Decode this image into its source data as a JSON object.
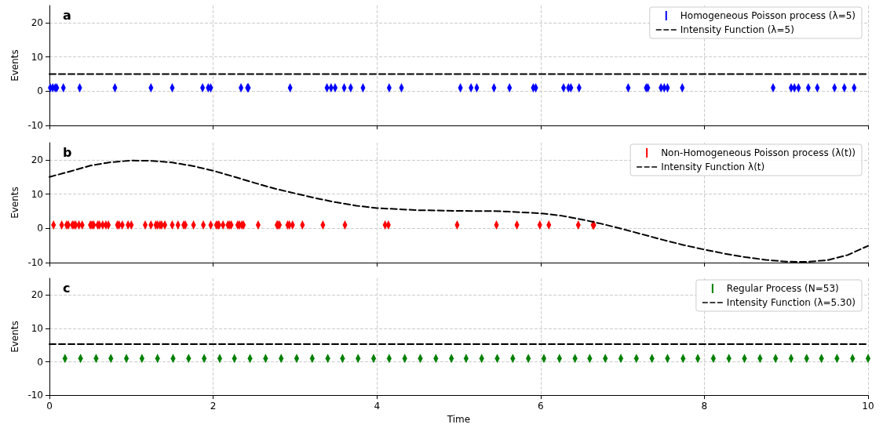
{
  "chart_data": [
    {
      "type": "scatter",
      "annotations": [
        "a"
      ],
      "ylabel": "Events",
      "xlim": [
        0,
        10
      ],
      "xticks": [
        0,
        2,
        4,
        6,
        8,
        10
      ],
      "ylim": [
        -10,
        25
      ],
      "yticks": [
        -10,
        0,
        10,
        20
      ],
      "grid": true,
      "legend": "top right",
      "tick_labels": "y",
      "x": [
        0.01,
        0.04,
        0.07,
        0.09,
        0.17,
        0.37,
        0.8,
        1.24,
        1.5,
        1.87,
        1.94,
        1.97,
        2.34,
        2.42,
        2.43,
        2.94,
        3.39,
        3.44,
        3.49,
        3.6,
        3.68,
        3.83,
        4.15,
        4.3,
        5.02,
        5.15,
        5.22,
        5.43,
        5.62,
        5.91,
        5.94,
        6.28,
        6.34,
        6.37,
        6.47,
        7.07,
        7.29,
        7.31,
        7.47,
        7.51,
        7.55,
        7.73,
        8.84,
        9.06,
        9.1,
        9.15,
        9.27,
        9.38,
        9.59,
        9.71,
        9.83
      ],
      "series": [
        {
          "name": "Homogeneous Poisson process (λ=5)",
          "marker": "diamond",
          "color": "#0000ff",
          "values": [
            1,
            1,
            1,
            1,
            1,
            1,
            1,
            1,
            1,
            1,
            1,
            1,
            1,
            1,
            1,
            1,
            1,
            1,
            1,
            1,
            1,
            1,
            1,
            1,
            1,
            1,
            1,
            1,
            1,
            1,
            1,
            1,
            1,
            1,
            1,
            1,
            1,
            1,
            1,
            1,
            1,
            1,
            1,
            1,
            1,
            1,
            1,
            1,
            1,
            1,
            1
          ]
        },
        {
          "name": "Intensity Function (λ=5)",
          "type": "line",
          "marker": "none",
          "line_style": "dashed",
          "color": "#000000",
          "x": [
            0,
            10
          ],
          "values": [
            5,
            5
          ]
        }
      ]
    },
    {
      "type": "scatter",
      "annotations": [
        "b"
      ],
      "ylabel": "Events",
      "xlim": [
        0,
        10
      ],
      "xticks": [
        0,
        2,
        4,
        6,
        8,
        10
      ],
      "ylim": [
        -10,
        25
      ],
      "yticks": [
        -10,
        0,
        10,
        20
      ],
      "grid": true,
      "legend": "top right",
      "tick_labels": "y",
      "x": [
        0.05,
        0.15,
        0.21,
        0.23,
        0.28,
        0.3,
        0.32,
        0.36,
        0.4,
        0.5,
        0.52,
        0.54,
        0.59,
        0.61,
        0.65,
        0.69,
        0.72,
        0.83,
        0.85,
        0.89,
        0.96,
        1.0,
        1.17,
        1.24,
        1.3,
        1.32,
        1.35,
        1.37,
        1.41,
        1.5,
        1.57,
        1.64,
        1.66,
        1.76,
        1.88,
        1.97,
        2.04,
        2.06,
        2.07,
        2.12,
        2.18,
        2.2,
        2.22,
        2.3,
        2.32,
        2.35,
        2.37,
        2.55,
        2.78,
        2.79,
        2.81,
        2.91,
        2.93,
        2.97,
        3.09,
        3.34,
        3.61,
        4.1,
        4.14,
        4.98,
        5.46,
        5.71,
        5.99,
        6.1,
        6.46,
        6.64,
        6.65
      ],
      "series": [
        {
          "name": "Non-Homogeneous Poisson process (λ(t))",
          "marker": "diamond",
          "color": "#ff0000",
          "values": [
            1,
            1,
            1,
            1,
            1,
            1,
            1,
            1,
            1,
            1,
            1,
            1,
            1,
            1,
            1,
            1,
            1,
            1,
            1,
            1,
            1,
            1,
            1,
            1,
            1,
            1,
            1,
            1,
            1,
            1,
            1,
            1,
            1,
            1,
            1,
            1,
            1,
            1,
            1,
            1,
            1,
            1,
            1,
            1,
            1,
            1,
            1,
            1,
            1,
            1,
            1,
            1,
            1,
            1,
            1,
            1,
            1,
            1,
            1,
            1,
            1,
            1,
            1,
            1,
            1,
            1,
            1
          ]
        },
        {
          "name": "Intensity Function λ(t)",
          "type": "line",
          "marker": "none",
          "line_style": "dashed",
          "color": "#000000",
          "x": [
            0,
            0.25,
            0.5,
            0.75,
            1,
            1.25,
            1.5,
            1.75,
            2,
            2.25,
            2.5,
            2.75,
            3,
            3.25,
            3.5,
            3.75,
            4,
            4.5,
            5,
            5.5,
            6,
            6.25,
            6.5,
            6.75,
            7,
            7.25,
            7.5,
            7.75,
            8,
            8.25,
            8.5,
            8.75,
            9,
            9.25,
            9.5,
            9.75,
            10
          ],
          "values": [
            15,
            16.6,
            18.3,
            19.3,
            19.8,
            19.7,
            19.2,
            18.2,
            16.8,
            15.1,
            13.3,
            11.6,
            10.2,
            8.8,
            7.6,
            6.6,
            5.9,
            5.3,
            5.1,
            5.0,
            4.4,
            3.7,
            2.6,
            1.3,
            -0.2,
            -1.8,
            -3.4,
            -4.9,
            -6.2,
            -7.4,
            -8.4,
            -9.2,
            -9.7,
            -9.8,
            -9.3,
            -7.8,
            -5.1
          ]
        }
      ]
    },
    {
      "type": "scatter",
      "annotations": [
        "c"
      ],
      "xlabel": "Time",
      "ylabel": "Events",
      "xlim": [
        0,
        10
      ],
      "xticks": [
        0,
        2,
        4,
        6,
        8,
        10
      ],
      "ylim": [
        -10,
        25
      ],
      "yticks": [
        -10,
        0,
        10,
        20
      ],
      "grid": true,
      "legend": "top right",
      "x": [
        0.19,
        0.38,
        0.57,
        0.75,
        0.94,
        1.13,
        1.32,
        1.51,
        1.7,
        1.89,
        2.08,
        2.26,
        2.45,
        2.64,
        2.83,
        3.02,
        3.21,
        3.4,
        3.58,
        3.77,
        3.96,
        4.15,
        4.34,
        4.53,
        4.72,
        4.91,
        5.09,
        5.28,
        5.47,
        5.66,
        5.85,
        6.04,
        6.23,
        6.42,
        6.6,
        6.79,
        6.98,
        7.17,
        7.36,
        7.55,
        7.74,
        7.92,
        8.11,
        8.3,
        8.49,
        8.68,
        8.87,
        9.06,
        9.25,
        9.43,
        9.62,
        9.81,
        10
      ],
      "series": [
        {
          "name": "Regular Process (N=53)",
          "marker": "diamond",
          "color": "#008000",
          "values": [
            1,
            1,
            1,
            1,
            1,
            1,
            1,
            1,
            1,
            1,
            1,
            1,
            1,
            1,
            1,
            1,
            1,
            1,
            1,
            1,
            1,
            1,
            1,
            1,
            1,
            1,
            1,
            1,
            1,
            1,
            1,
            1,
            1,
            1,
            1,
            1,
            1,
            1,
            1,
            1,
            1,
            1,
            1,
            1,
            1,
            1,
            1,
            1,
            1,
            1,
            1,
            1,
            1
          ]
        },
        {
          "name": "Intensity Function (λ=5.30)",
          "type": "line",
          "marker": "none",
          "line_style": "dashed",
          "color": "#000000",
          "x": [
            0,
            10
          ],
          "values": [
            5.3,
            5.3
          ]
        }
      ]
    }
  ]
}
